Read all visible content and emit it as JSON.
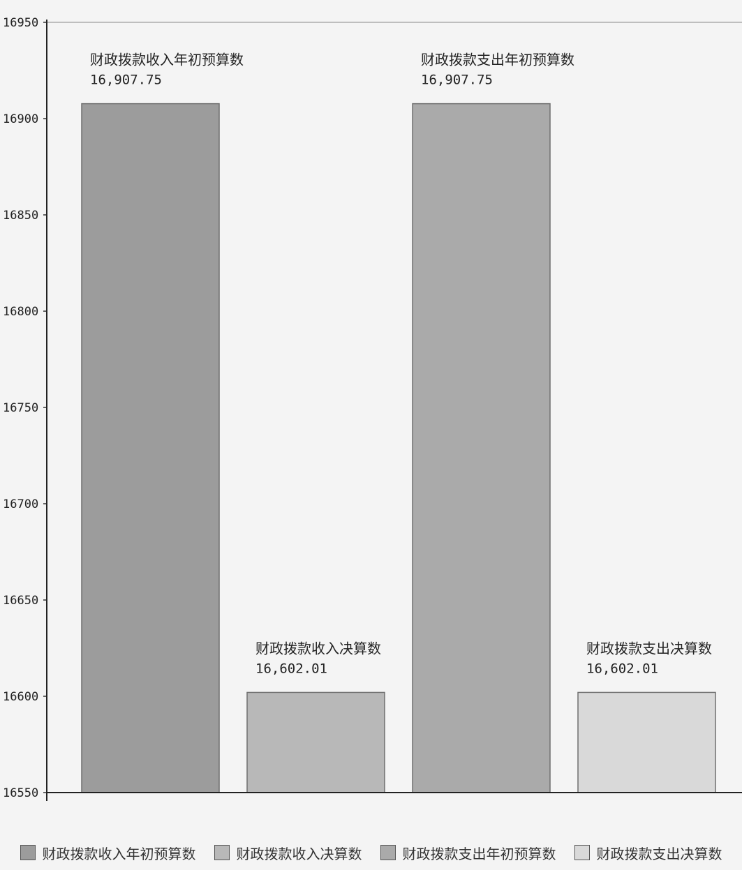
{
  "chart_data": {
    "type": "bar",
    "categories": [
      "财政拨款收入年初预算数",
      "财政拨款收入决算数",
      "财政拨款支出年初预算数",
      "财政拨款支出决算数"
    ],
    "values": [
      16907.75,
      16602.01,
      16907.75,
      16602.01
    ],
    "data_labels": [
      "16,907.75",
      "16,602.01",
      "16,907.75",
      "16,602.01"
    ],
    "ylim": [
      16550,
      16950
    ],
    "yticks": [
      16550,
      16600,
      16650,
      16700,
      16750,
      16800,
      16850,
      16900,
      16950
    ],
    "legend": {
      "placement": "bottom",
      "entries": [
        "财政拨款收入年初预算数",
        "财政拨款收入决算数",
        "财政拨款支出年初预算数",
        "财政拨款支出决算数"
      ]
    },
    "colors": [
      "#9c9c9c",
      "#b8b8b8",
      "#aaaaaa",
      "#d9d9d9"
    ],
    "grid": false
  }
}
